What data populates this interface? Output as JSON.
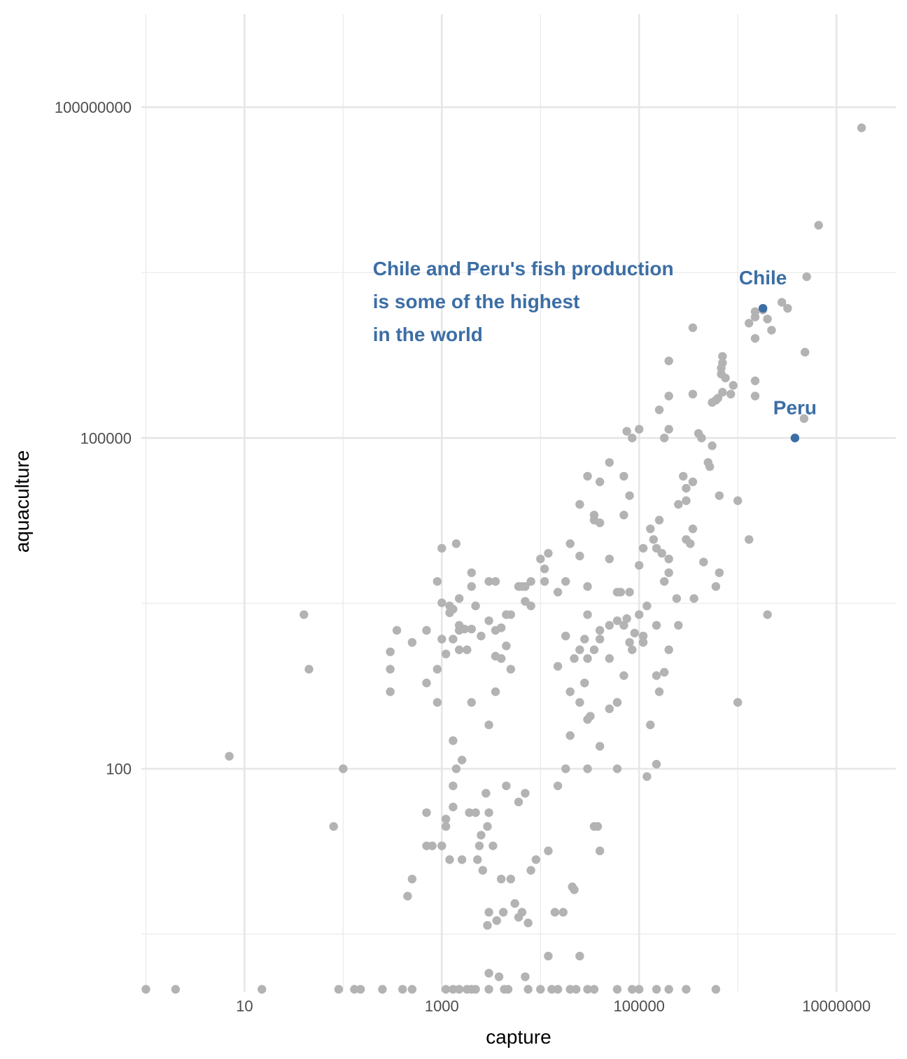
{
  "chart_data": {
    "type": "scatter",
    "title": "",
    "xlabel": "capture",
    "ylabel": "aquaculture",
    "x_scale": "log10",
    "y_scale": "log10",
    "xlim": [
      0.9,
      40000000
    ],
    "ylim": [
      0.95,
      700000000
    ],
    "x_ticks": [
      10,
      1000,
      100000,
      10000000
    ],
    "x_tick_labels": [
      "10",
      "1000",
      "100000",
      "10000000"
    ],
    "y_ticks": [
      100,
      100000,
      100000000
    ],
    "y_tick_labels": [
      "100",
      "100000",
      "100000000"
    ],
    "grid": true,
    "colors": {
      "point": "#b3b3b3",
      "highlight": "#3c6ea5"
    },
    "annotation": {
      "lines": [
        "Chile and Peru's fish production",
        "is some of the highest",
        "in the world"
      ],
      "at": {
        "x": 200,
        "y": 3000000
      }
    },
    "highlights": [
      {
        "label": "Chile",
        "x": 1800000,
        "y": 1500000
      },
      {
        "label": "Peru",
        "x": 3800000,
        "y": 100000
      }
    ],
    "points": [
      [
        18000000,
        65000000
      ],
      [
        6600000,
        8500000
      ],
      [
        5000000,
        2900000
      ],
      [
        2800000,
        1700000
      ],
      [
        1300000,
        1100000
      ],
      [
        2000000,
        1200000
      ],
      [
        1500000,
        1250000
      ],
      [
        2200000,
        950000
      ],
      [
        1500000,
        1400000
      ],
      [
        3200000,
        1500000
      ],
      [
        1800000,
        1450000
      ],
      [
        1500000,
        800000
      ],
      [
        4800000,
        600000
      ],
      [
        1500000,
        330000
      ],
      [
        350000,
        1000000
      ],
      [
        700000,
        550000
      ],
      [
        4700000,
        150000
      ],
      [
        680000,
        380000
      ],
      [
        700000,
        480000
      ],
      [
        680000,
        430000
      ],
      [
        900000,
        300000
      ],
      [
        750000,
        350000
      ],
      [
        1500000,
        240000
      ],
      [
        700000,
        260000
      ],
      [
        850000,
        250000
      ],
      [
        630000,
        230000
      ],
      [
        600000,
        220000
      ],
      [
        550000,
        210000
      ],
      [
        350000,
        250000
      ],
      [
        200000,
        500000
      ],
      [
        200000,
        120000
      ],
      [
        400000,
        110000
      ],
      [
        430000,
        100000
      ],
      [
        500000,
        60000
      ],
      [
        550000,
        85000
      ],
      [
        350000,
        40000
      ],
      [
        300000,
        35000
      ],
      [
        280000,
        45000
      ],
      [
        300000,
        27000
      ],
      [
        250000,
        25000
      ],
      [
        200000,
        240000
      ],
      [
        160000,
        180000
      ],
      [
        100000,
        120000
      ],
      [
        75000,
        115000
      ],
      [
        85000,
        100000
      ],
      [
        180000,
        100000
      ],
      [
        520000,
        55000
      ],
      [
        650000,
        30000
      ],
      [
        1000000,
        27000
      ],
      [
        1300000,
        12000
      ],
      [
        600000,
        4500
      ],
      [
        650000,
        6000
      ],
      [
        450000,
        7500
      ],
      [
        300000,
        12000
      ],
      [
        350000,
        15000
      ],
      [
        330000,
        11000
      ],
      [
        360000,
        3500
      ],
      [
        200000,
        6000
      ],
      [
        200000,
        8000
      ],
      [
        180000,
        5000
      ],
      [
        170000,
        9000
      ],
      [
        150000,
        10000
      ],
      [
        110000,
        10000
      ],
      [
        100000,
        7000
      ],
      [
        140000,
        12000
      ],
      [
        130000,
        15000
      ],
      [
        160000,
        18000
      ],
      [
        80000,
        30000
      ],
      [
        70000,
        45000
      ],
      [
        70000,
        20000
      ],
      [
        50000,
        60000
      ],
      [
        40000,
        40000
      ],
      [
        30000,
        45000
      ],
      [
        35000,
        20000
      ],
      [
        35000,
        18000
      ],
      [
        40000,
        17000
      ],
      [
        25000,
        25000
      ],
      [
        50000,
        8000
      ],
      [
        60000,
        4000
      ],
      [
        80000,
        4000
      ],
      [
        100000,
        2500
      ],
      [
        120000,
        3000
      ],
      [
        150000,
        2000
      ],
      [
        240000,
        3500
      ],
      [
        250000,
        2000
      ],
      [
        200000,
        1200
      ],
      [
        180000,
        750
      ],
      [
        150000,
        700
      ],
      [
        160000,
        500
      ],
      [
        110000,
        1400
      ],
      [
        110000,
        1600
      ],
      [
        130000,
        250
      ],
      [
        80000,
        1400
      ],
      [
        70000,
        700
      ],
      [
        60000,
        400
      ],
      [
        50000,
        1000
      ],
      [
        70000,
        2000
      ],
      [
        60000,
        2200
      ],
      [
        75000,
        2300
      ],
      [
        90000,
        1700
      ],
      [
        85000,
        1200
      ],
      [
        65000,
        4000
      ],
      [
        25000,
        8500
      ],
      [
        20000,
        11000
      ],
      [
        18000,
        5000
      ],
      [
        15000,
        4000
      ],
      [
        30000,
        4500
      ],
      [
        30000,
        2500
      ],
      [
        40000,
        1500
      ],
      [
        35000,
        1200
      ],
      [
        28000,
        1500
      ],
      [
        25000,
        1200
      ],
      [
        22000,
        1000
      ],
      [
        20000,
        500
      ],
      [
        15000,
        850
      ],
      [
        18000,
        1600
      ],
      [
        40000,
        1800
      ],
      [
        50000,
        2000
      ],
      [
        30000,
        1000
      ],
      [
        28000,
        600
      ],
      [
        25000,
        400
      ],
      [
        32000,
        300
      ],
      [
        30000,
        280
      ],
      [
        20000,
        200
      ],
      [
        8000,
        5000
      ],
      [
        7000,
        4500
      ],
      [
        3500,
        5000
      ],
      [
        3000,
        5000
      ],
      [
        2000,
        6000
      ],
      [
        1500,
        3500
      ],
      [
        1200,
        3000
      ],
      [
        1000,
        3200
      ],
      [
        1300,
        2800
      ],
      [
        1200,
        2600
      ],
      [
        1500,
        1800
      ],
      [
        1700,
        1850
      ],
      [
        2000,
        1850
      ],
      [
        2500,
        1600
      ],
      [
        1500,
        1200
      ],
      [
        1300,
        1500
      ],
      [
        1800,
        1200
      ],
      [
        3000,
        2200
      ],
      [
        5000,
        800
      ],
      [
        2000,
        400
      ],
      [
        3000,
        250
      ],
      [
        4000,
        1900
      ],
      [
        4500,
        1300
      ],
      [
        1000,
        1500
      ],
      [
        1100,
        1100
      ],
      [
        900,
        800
      ],
      [
        500,
        1400
      ],
      [
        700,
        1800
      ],
      [
        1500,
        2000
      ],
      [
        4500,
        2500
      ],
      [
        12000,
        9000
      ],
      [
        11000,
        5000
      ],
      [
        6000,
        4500
      ],
      [
        2000,
        4500
      ],
      [
        2200,
        3000
      ],
      [
        6500,
        4500
      ],
      [
        5000,
        2500
      ],
      [
        4000,
        1000
      ],
      [
        3500,
        1050
      ],
      [
        3500,
        1800
      ],
      [
        7000,
        3300
      ],
      [
        8000,
        3000
      ],
      [
        10000,
        8000
      ],
      [
        11000,
        6500
      ],
      [
        900,
        400
      ],
      [
        700,
        600
      ],
      [
        1300,
        180
      ],
      [
        1600,
        120
      ],
      [
        1400,
        100
      ],
      [
        2500,
        25
      ],
      [
        1000,
        20
      ],
      [
        1100,
        35
      ],
      [
        1300,
        45
      ],
      [
        700,
        40
      ],
      [
        800,
        20
      ],
      [
        2200,
        40
      ],
      [
        2400,
        20
      ],
      [
        2600,
        12
      ],
      [
        2300,
        15
      ],
      [
        2900,
        30
      ],
      [
        3300,
        20
      ],
      [
        9000,
        15
      ],
      [
        7000,
        60
      ],
      [
        6000,
        50
      ],
      [
        3000,
        40
      ],
      [
        1300,
        70
      ],
      [
        2800,
        60
      ],
      [
        4500,
        70
      ],
      [
        1200,
        15
      ],
      [
        500,
        10
      ],
      [
        450,
        7
      ],
      [
        5000,
        10
      ],
      [
        8000,
        12
      ],
      [
        4000,
        10
      ],
      [
        5500,
        6
      ],
      [
        4200,
        5
      ],
      [
        3000,
        5
      ],
      [
        1600,
        15
      ],
      [
        1100,
        30
      ],
      [
        1900,
        40
      ],
      [
        6500,
        5
      ],
      [
        7500,
        4
      ],
      [
        3600,
        4.2
      ],
      [
        2900,
        3.8
      ],
      [
        6000,
        4.5
      ],
      [
        14000,
        5
      ],
      [
        17000,
        5
      ],
      [
        12000,
        2
      ],
      [
        7000,
        1.3
      ],
      [
        3800,
        1.3
      ],
      [
        3000,
        1.4
      ],
      [
        22000,
        8
      ],
      [
        21000,
        8.5
      ],
      [
        25000,
        2
      ],
      [
        30000,
        100
      ],
      [
        60000,
        100
      ],
      [
        120000,
        85
      ],
      [
        150000,
        110
      ],
      [
        50000,
        350
      ],
      [
        40000,
        160
      ],
      [
        35000,
        30
      ],
      [
        38000,
        30
      ],
      [
        40000,
        18
      ],
      [
        12000,
        18
      ],
      [
        18000,
        100
      ],
      [
        15000,
        70
      ],
      [
        60000,
        400
      ],
      [
        1000000,
        400
      ],
      [
        2000000,
        2500
      ],
      [
        7,
        130
      ],
      [
        40,
        2500
      ],
      [
        45,
        800
      ],
      [
        100,
        100
      ],
      [
        80,
        30
      ],
      [
        300,
        500
      ],
      [
        300,
        800
      ],
      [
        350,
        1800
      ],
      [
        300,
        1150
      ],
      [
        700,
        20
      ],
      [
        900,
        5000
      ],
      [
        3500,
        500
      ],
      [
        1000,
        10000
      ],
      [
        1400,
        11000
      ]
    ],
    "bottom_points_y": 1,
    "bottom_points_x": [
      1,
      2,
      15,
      90,
      130,
      150,
      250,
      400,
      500,
      1100,
      1300,
      1500,
      1800,
      2000,
      2200,
      3000,
      4300,
      4700,
      7500,
      10000,
      13000,
      15000,
      20000,
      23000,
      30000,
      35000,
      60000,
      85000,
      100000,
      150000,
      200000,
      300000,
      600000
    ]
  }
}
